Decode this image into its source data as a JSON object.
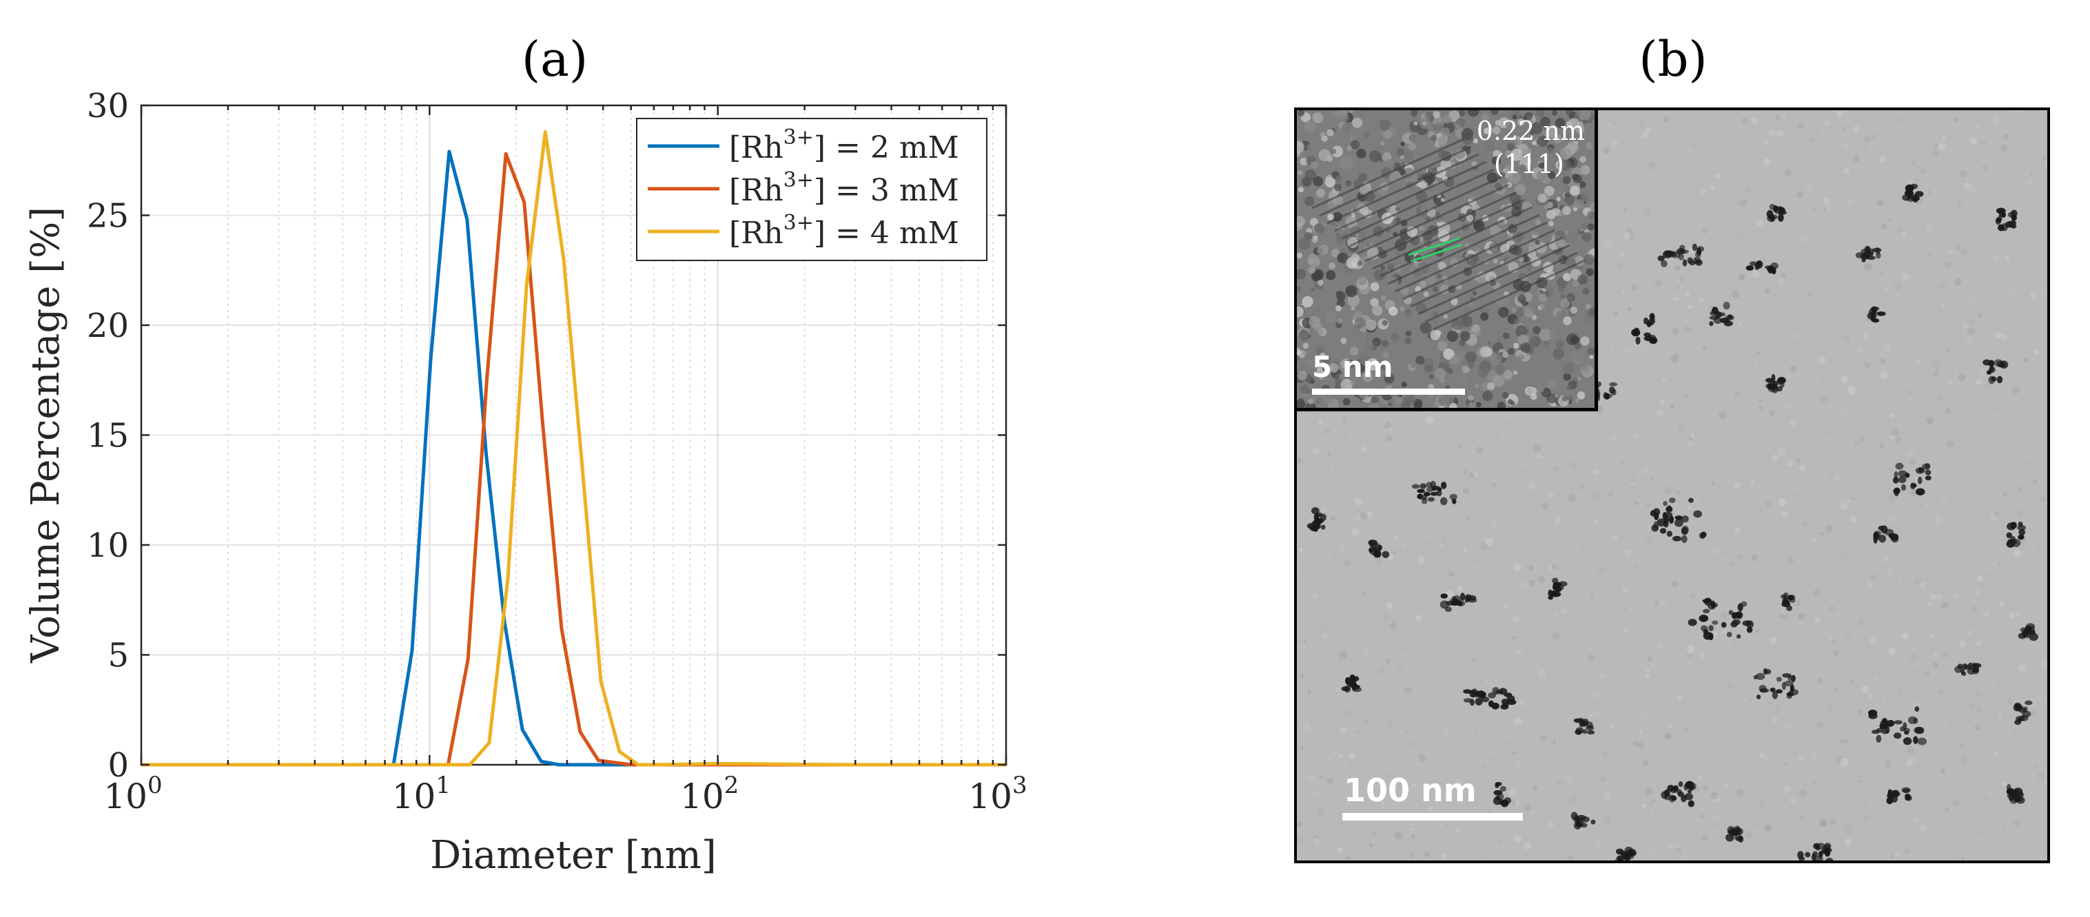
{
  "panel_a": {
    "label": "(a)",
    "chart_data": {
      "type": "line",
      "xscale": "log",
      "xlabel": "Diameter [nm]",
      "ylabel": "Volume Percentage [%]",
      "xlim": [
        1,
        1000
      ],
      "ylim": [
        0,
        30
      ],
      "grid": true,
      "x_ticks": [
        1,
        10,
        100,
        1000
      ],
      "x_tick_labels": [
        {
          "base": "10",
          "exp": "0"
        },
        {
          "base": "10",
          "exp": "1"
        },
        {
          "base": "10",
          "exp": "2"
        },
        {
          "base": "10",
          "exp": "3"
        }
      ],
      "y_ticks": [
        0,
        5,
        10,
        15,
        20,
        25,
        30
      ],
      "legend_position": "top-right",
      "series": [
        {
          "name": "[Rh3+] = 2 mM",
          "legend": {
            "pre": "[Rh",
            "sup": "3+",
            "post": "] = 2 mM"
          },
          "color": "#0072BD",
          "x": [
            1,
            2,
            5,
            7.5,
            8.7,
            10.1,
            11.7,
            13.5,
            15.7,
            18.2,
            21.0,
            24.4,
            28.2,
            32.7,
            40,
            100,
            1000
          ],
          "y": [
            0,
            0,
            0,
            0,
            5.2,
            18.5,
            27.9,
            24.8,
            14.2,
            6.5,
            1.6,
            0.15,
            0,
            0,
            0,
            0,
            0
          ]
        },
        {
          "name": "[Rh3+] = 3 mM",
          "legend": {
            "pre": "[Rh",
            "sup": "3+",
            "post": "] = 3 mM"
          },
          "color": "#D95319",
          "x": [
            1,
            5,
            9.9,
            11.6,
            13.6,
            15.8,
            18.4,
            21.3,
            24.7,
            28.7,
            33.3,
            38.5,
            50,
            100,
            1000
          ],
          "y": [
            0,
            0,
            0,
            0,
            4.8,
            17.5,
            27.8,
            25.6,
            15.5,
            6.2,
            1.5,
            0.2,
            0,
            0,
            0
          ]
        },
        {
          "name": "[Rh3+] = 4 mM",
          "legend": {
            "pre": "[Rh",
            "sup": "3+",
            "post": "] = 4 mM"
          },
          "color": "#EDB120",
          "x": [
            1,
            5,
            10,
            13.8,
            16.1,
            18.7,
            21.7,
            25.2,
            29.2,
            33.9,
            39.3,
            45.6,
            52.9,
            60,
            100,
            300,
            1000
          ],
          "y": [
            0,
            0,
            0,
            0,
            1.0,
            8.5,
            21.8,
            28.8,
            23.0,
            13.5,
            3.8,
            0.6,
            0,
            0,
            0.05,
            0,
            0
          ]
        }
      ]
    }
  },
  "panel_b": {
    "label": "(b)",
    "scale_bar_label": "100 nm",
    "inset": {
      "scale_bar_label": "5 nm",
      "spacing_label": "0.22 nm",
      "plane_label": "(111)"
    }
  }
}
